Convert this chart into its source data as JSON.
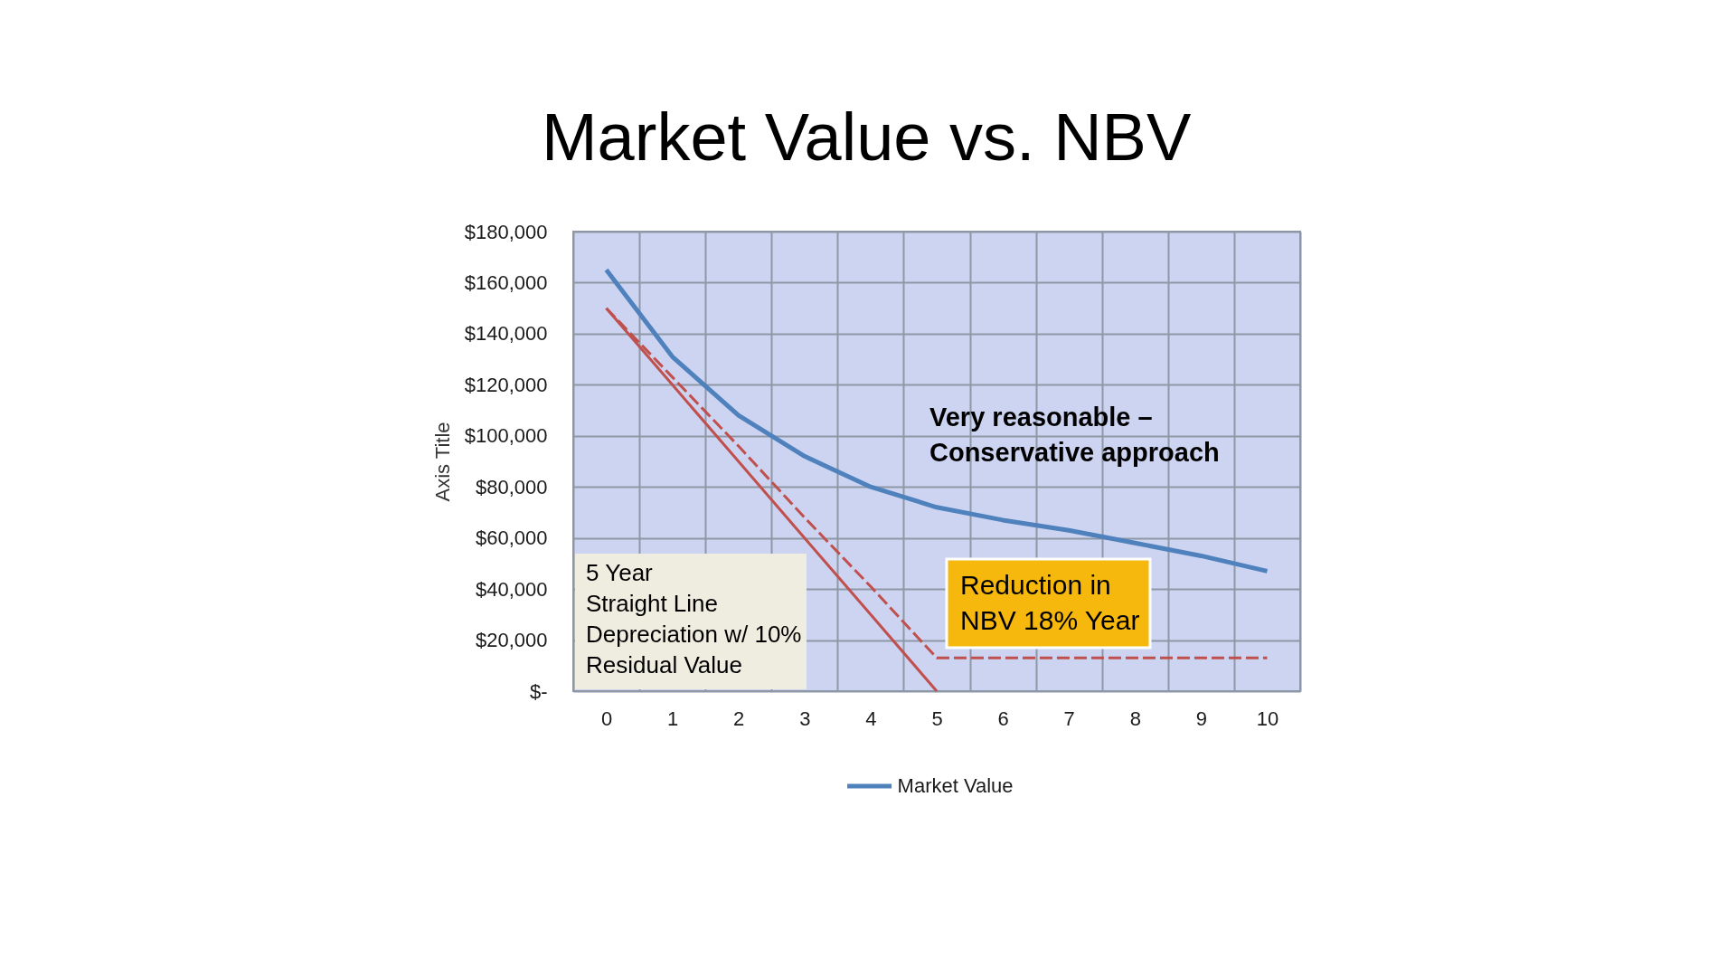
{
  "chart_data": {
    "type": "line",
    "title": "Market Value vs. NBV",
    "ylabel": "Axis Title",
    "categories": [
      "0",
      "1",
      "2",
      "3",
      "4",
      "5",
      "6",
      "7",
      "8",
      "9",
      "10"
    ],
    "ylim": [
      0,
      180000
    ],
    "yticks": [
      {
        "value": 0,
        "label": "$-"
      },
      {
        "value": 20000,
        "label": "$20,000"
      },
      {
        "value": 40000,
        "label": "$40,000"
      },
      {
        "value": 60000,
        "label": "$60,000"
      },
      {
        "value": 80000,
        "label": "$80,000"
      },
      {
        "value": 100000,
        "label": "$100,000"
      },
      {
        "value": 120000,
        "label": "$120,000"
      },
      {
        "value": 140000,
        "label": "$140,000"
      },
      {
        "value": 160000,
        "label": "$160,000"
      },
      {
        "value": 180000,
        "label": "$180,000"
      }
    ],
    "grid": true,
    "legend": "bottom",
    "series": [
      {
        "name": "Market Value",
        "color": "#4f81bd",
        "line_style": "solid",
        "values": [
          165000,
          131000,
          108000,
          92000,
          80000,
          72000,
          67000,
          63000,
          58000,
          53000,
          47000
        ]
      },
      {
        "color": "#c0504d",
        "line_style": "solid",
        "values": [
          150000,
          120000,
          90000,
          60000,
          30000,
          0,
          null,
          null,
          null,
          null,
          null
        ]
      },
      {
        "color": "#c0504d",
        "line_style": "dashed",
        "values": [
          150000,
          123000,
          96000,
          68000,
          41000,
          13000,
          13000,
          13000,
          13000,
          13000,
          13000
        ]
      }
    ],
    "annotations": [
      "5 Year\nStraight Line\nDepreciation w/ 10%\nResidual Value",
      "Very reasonable –\nConservative approach",
      "Reduction in\nNBV 18% Year"
    ]
  }
}
